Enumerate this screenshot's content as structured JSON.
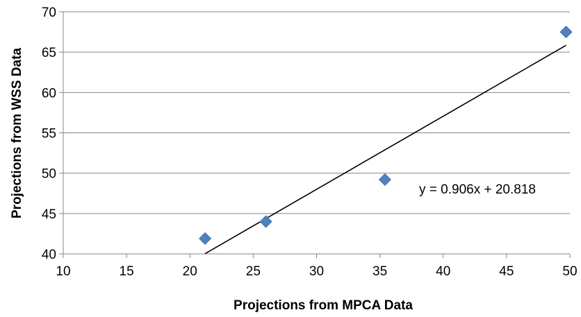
{
  "chart_data": {
    "type": "scatter",
    "title": "",
    "xlabel": "Projections from MPCA Data",
    "ylabel": "Projections from WSS Data",
    "xlim": [
      10,
      50
    ],
    "ylim": [
      40,
      70
    ],
    "x_ticks": [
      "10",
      "15",
      "20",
      "25",
      "30",
      "35",
      "40",
      "45",
      "50"
    ],
    "y_ticks": [
      "40",
      "45",
      "50",
      "55",
      "60",
      "65",
      "70"
    ],
    "grid": "horizontal",
    "legend": "none",
    "series": [
      {
        "marker": "diamond",
        "color": "#4f81bd",
        "x": [
          21.2,
          26.0,
          35.4,
          49.7
        ],
        "y": [
          41.9,
          44.0,
          49.2,
          67.5
        ]
      }
    ],
    "trendline": {
      "slope": 0.906,
      "intercept": 20.818,
      "x_range": [
        21.2,
        49.7
      ],
      "color": "#000000",
      "equation_label": "y = 0.906x + 20.818"
    }
  }
}
